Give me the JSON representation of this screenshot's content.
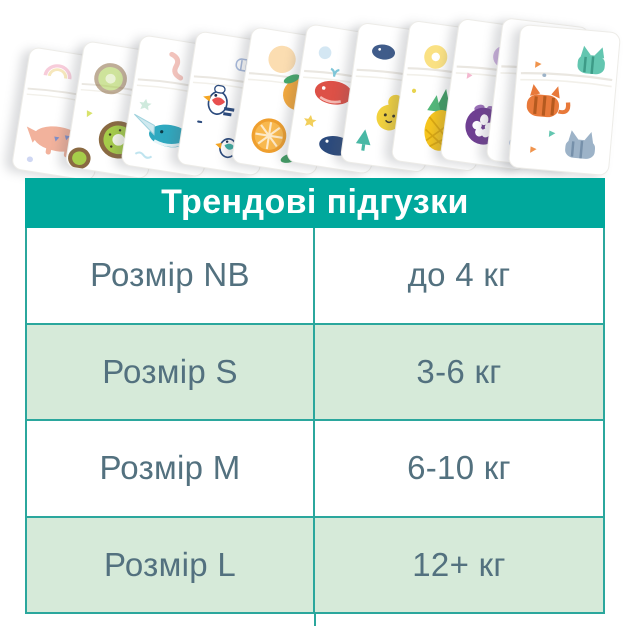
{
  "title_bar": {
    "title": "Трендові підгузки"
  },
  "size_table": {
    "rows": [
      {
        "size_label": "Розмір NB",
        "weight_range": "до 4 кг"
      },
      {
        "size_label": "Розмір S",
        "weight_range": "3-6 кг"
      },
      {
        "size_label": "Розмір M",
        "weight_range": "6-10 кг"
      },
      {
        "size_label": "Розмір L",
        "weight_range": "12+ кг"
      }
    ]
  },
  "diaper_fan": {
    "patterns": [
      "dinosaur-print",
      "kiwi-print",
      "narwhal-print",
      "parrot-print",
      "orange-print",
      "whale-print",
      "pear-print",
      "pineapple-print",
      "mangosteen-print",
      "shark-print",
      "cat-print"
    ]
  },
  "colors": {
    "accent_teal": "#00a89c",
    "row_mint": "#d6ead9",
    "border_teal": "#2ba79d",
    "text_slate": "#53717f"
  },
  "chart_data": {
    "type": "table",
    "title": "Трендові підгузки",
    "rows": [
      [
        "Розмір NB",
        "до 4 кг"
      ],
      [
        "Розмір S",
        "3-6 кг"
      ],
      [
        "Розмір M",
        "6-10 кг"
      ],
      [
        "Розмір L",
        "12+ кг"
      ]
    ]
  }
}
